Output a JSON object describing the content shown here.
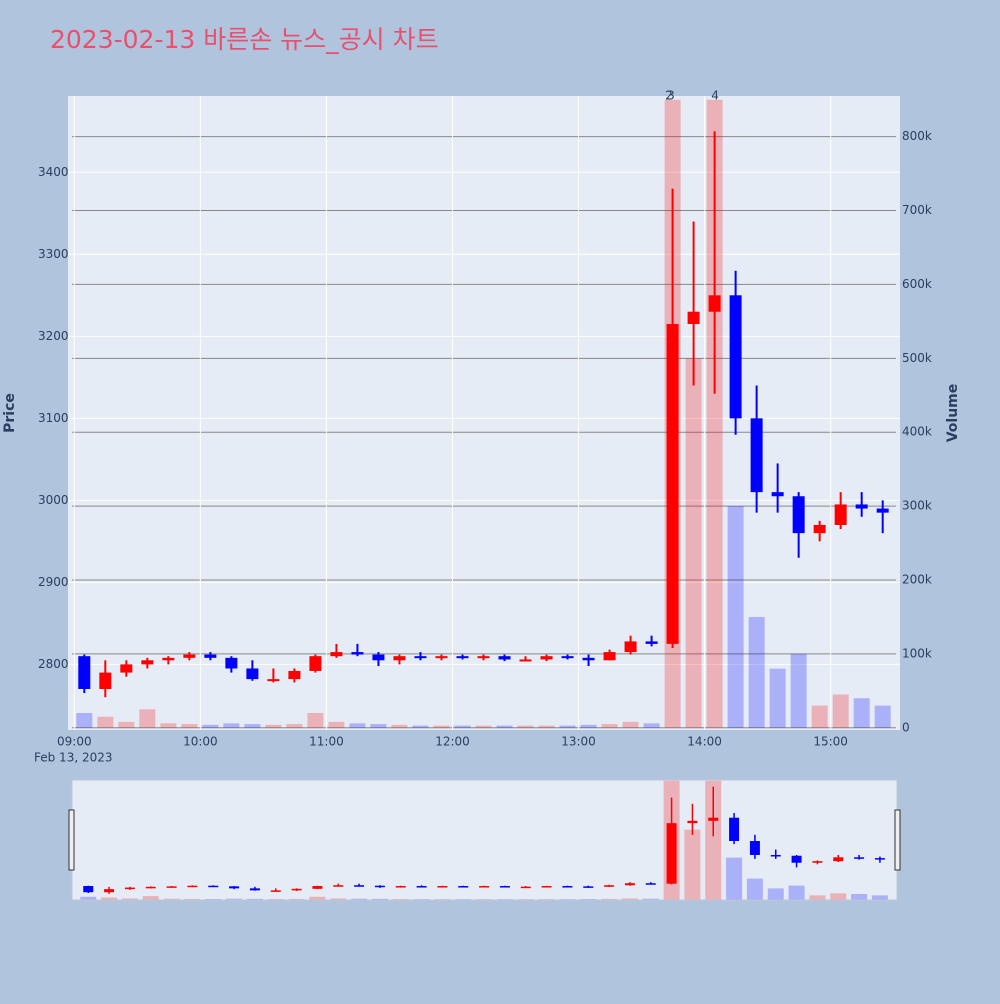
{
  "chart_data": {
    "type": "candlestick",
    "title": "2023-02-13 바른손 뉴스_공시 차트",
    "y_title": "Price",
    "y2_title": "Volume",
    "x_date_label": "Feb 13, 2023",
    "increasing_color": "#ff0000",
    "decreasing_color": "#0000ff",
    "x": [
      "2023-02-13 09:00",
      "2023-02-13 09:10",
      "2023-02-13 09:20",
      "2023-02-13 09:30",
      "2023-02-13 09:40",
      "2023-02-13 09:50",
      "2023-02-13 10:00",
      "2023-02-13 10:10",
      "2023-02-13 10:20",
      "2023-02-13 10:30",
      "2023-02-13 10:40",
      "2023-02-13 10:50",
      "2023-02-13 11:00",
      "2023-02-13 11:10",
      "2023-02-13 11:20",
      "2023-02-13 11:30",
      "2023-02-13 11:40",
      "2023-02-13 11:50",
      "2023-02-13 12:00",
      "2023-02-13 12:10",
      "2023-02-13 12:20",
      "2023-02-13 12:30",
      "2023-02-13 12:40",
      "2023-02-13 12:50",
      "2023-02-13 13:00",
      "2023-02-13 13:10",
      "2023-02-13 13:20",
      "2023-02-13 13:30",
      "2023-02-13 13:40",
      "2023-02-13 13:50",
      "2023-02-13 14:00",
      "2023-02-13 14:10",
      "2023-02-13 14:20",
      "2023-02-13 14:30",
      "2023-02-13 14:40",
      "2023-02-13 14:50",
      "2023-02-13 15:00",
      "2023-02-13 15:10",
      "2023-02-13 15:20"
    ],
    "open": [
      2810,
      2770,
      2790,
      2800,
      2805,
      2808,
      2812,
      2808,
      2795,
      2782,
      2782,
      2792,
      2810,
      2815,
      2812,
      2805,
      2810,
      2808,
      2810,
      2808,
      2810,
      2806,
      2806,
      2810,
      2808,
      2805,
      2815,
      2828,
      2825,
      3215,
      3230,
      3250,
      3100,
      3010,
      3005,
      2960,
      2970,
      2995,
      2990
    ],
    "high": [
      2812,
      2805,
      2805,
      2808,
      2810,
      2815,
      2815,
      2810,
      2805,
      2795,
      2795,
      2812,
      2825,
      2825,
      2815,
      2812,
      2815,
      2812,
      2812,
      2812,
      2812,
      2810,
      2812,
      2812,
      2812,
      2818,
      2835,
      2835,
      3380,
      3340,
      3450,
      3280,
      3140,
      3045,
      3010,
      2975,
      3010,
      3010,
      3000
    ],
    "low": [
      2765,
      2760,
      2785,
      2795,
      2800,
      2805,
      2805,
      2790,
      2780,
      2778,
      2778,
      2790,
      2808,
      2810,
      2798,
      2800,
      2805,
      2805,
      2806,
      2805,
      2804,
      2804,
      2804,
      2806,
      2798,
      2805,
      2812,
      2822,
      2820,
      3140,
      3130,
      3080,
      2985,
      2985,
      2930,
      2950,
      2965,
      2980,
      2960
    ],
    "close": [
      2770,
      2790,
      2800,
      2805,
      2808,
      2812,
      2808,
      2795,
      2782,
      2782,
      2792,
      2810,
      2815,
      2812,
      2805,
      2810,
      2808,
      2810,
      2808,
      2810,
      2806,
      2806,
      2810,
      2808,
      2805,
      2815,
      2828,
      2825,
      3215,
      3230,
      3250,
      3100,
      3010,
      3005,
      2960,
      2970,
      2995,
      2990,
      2985
    ],
    "volume": [
      20000,
      15000,
      8000,
      25000,
      6000,
      5000,
      4000,
      6000,
      5000,
      4000,
      5000,
      20000,
      8000,
      6000,
      5000,
      4000,
      3000,
      3000,
      3000,
      3000,
      3000,
      3000,
      3000,
      3000,
      4000,
      5000,
      8000,
      6000,
      850000,
      500000,
      850000,
      300000,
      150000,
      80000,
      100000,
      30000,
      45000,
      40000,
      30000
    ],
    "annotations": [
      {
        "x": "2023-02-13 13:43",
        "text": "2"
      },
      {
        "x": "2023-02-13 13:44",
        "text": "3"
      },
      {
        "x": "2023-02-13 14:05",
        "text": "4"
      }
    ],
    "xlim": [
      "2023-02-13 08:57",
      "2023-02-13 15:33"
    ],
    "xticks": [
      {
        "value": "2023-02-13 09:00",
        "label": "09:00"
      },
      {
        "value": "2023-02-13 10:00",
        "label": "10:00"
      },
      {
        "value": "2023-02-13 11:00",
        "label": "11:00"
      },
      {
        "value": "2023-02-13 12:00",
        "label": "12:00"
      },
      {
        "value": "2023-02-13 13:00",
        "label": "13:00"
      },
      {
        "value": "2023-02-13 14:00",
        "label": "14:00"
      },
      {
        "value": "2023-02-13 15:00",
        "label": "15:00"
      }
    ],
    "ylim": [
      2720,
      3493
    ],
    "yticks": [
      2800,
      2900,
      3000,
      3100,
      3200,
      3300,
      3400
    ],
    "y2lim": [
      -3000,
      855000
    ],
    "y2ticks": [
      0,
      {
        "value": 100000,
        "label": "100k"
      },
      {
        "value": 200000,
        "label": "200k"
      },
      {
        "value": 300000,
        "label": "300k"
      },
      {
        "value": 400000,
        "label": "400k"
      },
      {
        "value": 500000,
        "label": "500k"
      },
      {
        "value": 600000,
        "label": "600k"
      },
      {
        "value": 700000,
        "label": "700k"
      },
      {
        "value": 800000,
        "label": "800k"
      }
    ],
    "grid": true,
    "rangeslider": true
  }
}
